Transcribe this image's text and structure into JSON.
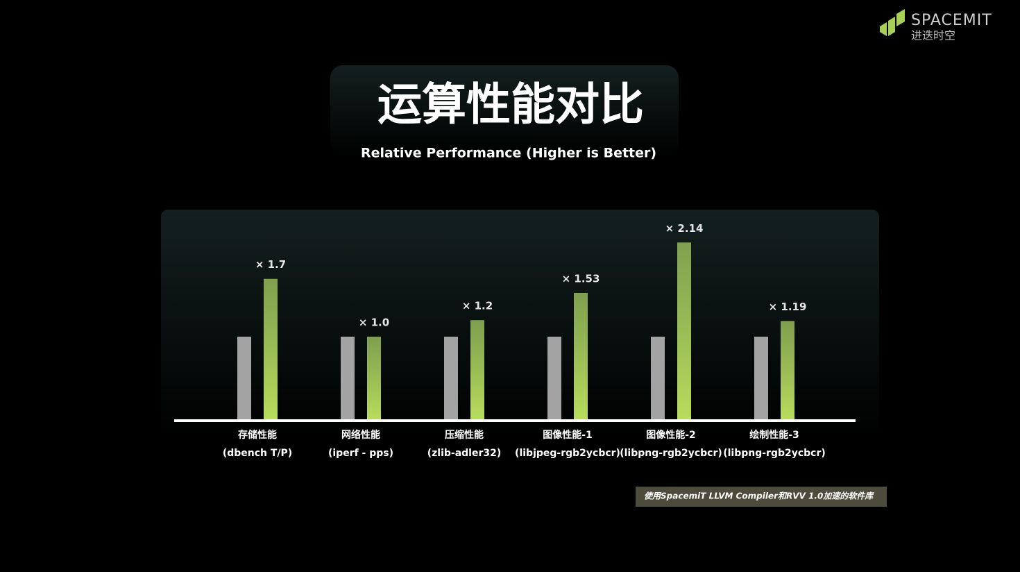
{
  "brand": {
    "name": "SPACEMIT",
    "name_cn": "进迭时空"
  },
  "chart_data": {
    "type": "bar",
    "title": "运算性能对比",
    "subtitle": "Relative Performance (Higher is Better)",
    "categories": [
      [
        "存储性能",
        "(dbench T/P)"
      ],
      [
        "网络性能",
        "(iperf - pps)"
      ],
      [
        "压缩性能",
        "(zlib-adler32)"
      ],
      [
        "图像性能-1",
        "(libjpeg-rgb2ycbcr)"
      ],
      [
        "图像性能-2",
        "(libpng-rgb2ycbcr)"
      ],
      [
        "绘制性能-3",
        "(libpng-rgb2ycbcr)"
      ]
    ],
    "series": [
      {
        "color": "#a3a3a3",
        "values": [
          1,
          1,
          1,
          1,
          1,
          1
        ]
      },
      {
        "color": "#a8d058",
        "values": [
          1.7,
          1.0,
          1.2,
          1.53,
          2.14,
          1.19
        ],
        "value_labels": [
          "× 1.7",
          "× 1.0",
          "× 1.2",
          "× 1.53",
          "× 2.14",
          "× 1.19"
        ]
      }
    ],
    "note": "使用SpacemiT LLVM  Compiler和RVV 1.0加速的软件库"
  }
}
